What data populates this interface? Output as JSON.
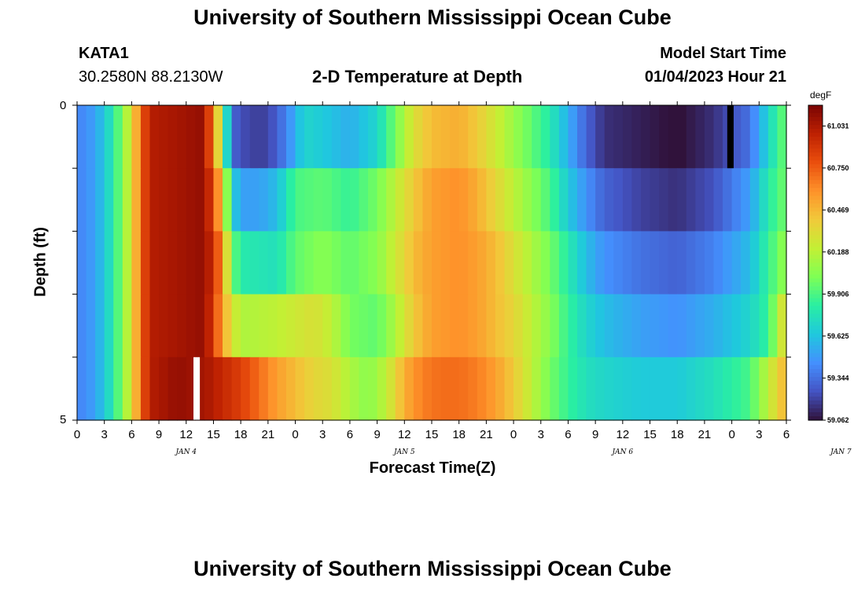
{
  "header": {
    "title": "University of Southern Mississippi Ocean Cube",
    "station_id": "KATA1",
    "station_coords": "30.2580N  88.2130W",
    "subtitle": "2-D Temperature at Depth",
    "model_start_label": "Model Start Time",
    "model_start_value": "01/04/2023 Hour 21"
  },
  "footer": {
    "title": "University of Southern Mississippi Ocean Cube"
  },
  "chart_data": {
    "type": "heatmap",
    "title": "2-D Temperature at Depth",
    "xlabel": "Forecast Time(Z)",
    "ylabel": "Depth (ft)",
    "y_ticks": [
      "0",
      "5"
    ],
    "ylim": [
      0,
      5
    ],
    "y_reversed": true,
    "x_tick_labels": [
      "0",
      "3",
      "6",
      "9",
      "12",
      "15",
      "18",
      "21",
      "0",
      "3",
      "6",
      "9",
      "12",
      "15",
      "18",
      "21",
      "0",
      "3",
      "6",
      "9",
      "12",
      "15",
      "18",
      "21",
      "0",
      "3",
      "6"
    ],
    "date_labels": [
      {
        "label": "JAN 4",
        "at_hour": 12
      },
      {
        "label": "JAN 5",
        "at_hour": 36
      },
      {
        "label": "JAN 6",
        "at_hour": 60
      },
      {
        "label": "JAN 7",
        "at_hour": 84
      }
    ],
    "x_range_hours": [
      0,
      78
    ],
    "colorbar": {
      "unit": "degF",
      "min": 59.062,
      "max": 61.17,
      "tick_values": [
        "61.031",
        "60.750",
        "60.469",
        "60.188",
        "59.906",
        "59.625",
        "59.344",
        "59.062"
      ],
      "colors": [
        "#30123b",
        "#4454c4",
        "#4490fe",
        "#1fc8de",
        "#29efa2",
        "#7eff55",
        "#c3f034",
        "#f1ca3a",
        "#fe922a",
        "#ea4e0d",
        "#be2102",
        "#7a0403"
      ]
    },
    "depth_layers": 5,
    "rows": [
      {
        "layer": 1,
        "knots": [
          [
            0,
            59.4
          ],
          [
            2,
            59.5
          ],
          [
            4,
            59.8
          ],
          [
            6,
            60.3
          ],
          [
            7,
            60.7
          ],
          [
            8,
            61.0
          ],
          [
            14,
            61.1
          ],
          [
            15,
            60.6
          ],
          [
            16,
            60.1
          ],
          [
            17,
            59.3
          ],
          [
            19,
            59.2
          ],
          [
            21,
            59.2
          ],
          [
            23,
            59.4
          ],
          [
            25,
            59.7
          ],
          [
            27,
            59.65
          ],
          [
            30,
            59.55
          ],
          [
            33,
            59.7
          ],
          [
            35,
            60.0
          ],
          [
            37,
            60.3
          ],
          [
            39,
            60.45
          ],
          [
            42,
            60.5
          ],
          [
            44,
            60.4
          ],
          [
            46,
            60.25
          ],
          [
            48,
            60.1
          ],
          [
            50,
            59.95
          ],
          [
            52,
            59.8
          ],
          [
            54,
            59.55
          ],
          [
            56,
            59.3
          ],
          [
            58,
            59.15
          ],
          [
            62,
            59.1
          ],
          [
            66,
            59.05
          ],
          [
            70,
            59.15
          ],
          [
            74,
            59.35
          ],
          [
            76,
            59.7
          ],
          [
            78,
            60.0
          ]
        ]
      },
      {
        "layer": 2,
        "knots": [
          [
            0,
            59.4
          ],
          [
            2,
            59.5
          ],
          [
            4,
            59.8
          ],
          [
            6,
            60.3
          ],
          [
            7,
            60.7
          ],
          [
            8,
            61.0
          ],
          [
            14,
            61.1
          ],
          [
            15,
            60.8
          ],
          [
            16,
            60.4
          ],
          [
            17,
            59.7
          ],
          [
            18,
            59.5
          ],
          [
            20,
            59.5
          ],
          [
            22,
            59.6
          ],
          [
            24,
            59.9
          ],
          [
            27,
            59.95
          ],
          [
            30,
            59.85
          ],
          [
            33,
            60.0
          ],
          [
            35,
            60.2
          ],
          [
            37,
            60.4
          ],
          [
            39,
            60.55
          ],
          [
            42,
            60.6
          ],
          [
            44,
            60.5
          ],
          [
            46,
            60.35
          ],
          [
            48,
            60.2
          ],
          [
            50,
            60.05
          ],
          [
            52,
            59.9
          ],
          [
            54,
            59.65
          ],
          [
            56,
            59.45
          ],
          [
            58,
            59.3
          ],
          [
            62,
            59.2
          ],
          [
            66,
            59.15
          ],
          [
            70,
            59.25
          ],
          [
            74,
            59.5
          ],
          [
            76,
            59.8
          ],
          [
            78,
            60.0
          ]
        ]
      },
      {
        "layer": 3,
        "knots": [
          [
            0,
            59.4
          ],
          [
            2,
            59.5
          ],
          [
            4,
            59.8
          ],
          [
            6,
            60.3
          ],
          [
            7,
            60.7
          ],
          [
            8,
            61.0
          ],
          [
            14,
            61.1
          ],
          [
            15,
            60.9
          ],
          [
            16,
            60.6
          ],
          [
            17,
            60.0
          ],
          [
            18,
            59.8
          ],
          [
            22,
            59.75
          ],
          [
            24,
            59.95
          ],
          [
            27,
            60.05
          ],
          [
            30,
            59.95
          ],
          [
            33,
            60.05
          ],
          [
            35,
            60.25
          ],
          [
            37,
            60.45
          ],
          [
            39,
            60.55
          ],
          [
            42,
            60.6
          ],
          [
            44,
            60.55
          ],
          [
            46,
            60.45
          ],
          [
            48,
            60.3
          ],
          [
            50,
            60.15
          ],
          [
            52,
            60.0
          ],
          [
            54,
            59.8
          ],
          [
            56,
            59.6
          ],
          [
            58,
            59.45
          ],
          [
            62,
            59.35
          ],
          [
            66,
            59.3
          ],
          [
            70,
            59.4
          ],
          [
            74,
            59.6
          ],
          [
            76,
            59.85
          ],
          [
            78,
            60.1
          ]
        ]
      },
      {
        "layer": 4,
        "knots": [
          [
            0,
            59.4
          ],
          [
            2,
            59.5
          ],
          [
            4,
            59.8
          ],
          [
            6,
            60.3
          ],
          [
            7,
            60.7
          ],
          [
            8,
            61.0
          ],
          [
            14,
            61.1
          ],
          [
            15,
            60.85
          ],
          [
            16,
            60.55
          ],
          [
            17,
            60.3
          ],
          [
            18,
            60.15
          ],
          [
            22,
            60.2
          ],
          [
            24,
            60.25
          ],
          [
            26,
            60.3
          ],
          [
            28,
            60.2
          ],
          [
            30,
            60.0
          ],
          [
            33,
            59.95
          ],
          [
            35,
            60.15
          ],
          [
            37,
            60.4
          ],
          [
            39,
            60.55
          ],
          [
            42,
            60.6
          ],
          [
            44,
            60.55
          ],
          [
            46,
            60.45
          ],
          [
            48,
            60.35
          ],
          [
            50,
            60.2
          ],
          [
            52,
            60.05
          ],
          [
            54,
            59.85
          ],
          [
            56,
            59.7
          ],
          [
            58,
            59.6
          ],
          [
            62,
            59.5
          ],
          [
            66,
            59.45
          ],
          [
            70,
            59.55
          ],
          [
            74,
            59.7
          ],
          [
            76,
            59.85
          ],
          [
            78,
            60.4
          ]
        ]
      },
      {
        "layer": 5,
        "knots": [
          [
            0,
            59.4
          ],
          [
            2,
            59.5
          ],
          [
            4,
            59.8
          ],
          [
            6,
            60.3
          ],
          [
            7,
            60.7
          ],
          [
            8,
            61.0
          ],
          [
            11,
            61.1
          ],
          [
            14,
            61.05
          ],
          [
            16,
            60.95
          ],
          [
            18,
            60.85
          ],
          [
            20,
            60.7
          ],
          [
            22,
            60.55
          ],
          [
            24,
            60.45
          ],
          [
            26,
            60.35
          ],
          [
            28,
            60.3
          ],
          [
            30,
            60.15
          ],
          [
            32,
            60.05
          ],
          [
            34,
            60.2
          ],
          [
            36,
            60.5
          ],
          [
            38,
            60.65
          ],
          [
            40,
            60.7
          ],
          [
            42,
            60.7
          ],
          [
            44,
            60.65
          ],
          [
            46,
            60.55
          ],
          [
            48,
            60.4
          ],
          [
            50,
            60.2
          ],
          [
            52,
            60.0
          ],
          [
            54,
            59.85
          ],
          [
            56,
            59.75
          ],
          [
            58,
            59.7
          ],
          [
            62,
            59.65
          ],
          [
            66,
            59.65
          ],
          [
            70,
            59.75
          ],
          [
            74,
            59.9
          ],
          [
            76,
            60.2
          ],
          [
            78,
            60.5
          ]
        ]
      }
    ],
    "missing_cells": [
      {
        "layer": 1,
        "hour_start": 71.5,
        "hour_end": 72.2,
        "color": "#000000"
      },
      {
        "layer": 5,
        "hour_start": 12.8,
        "hour_end": 13.5,
        "color": "#ffffff"
      }
    ]
  }
}
